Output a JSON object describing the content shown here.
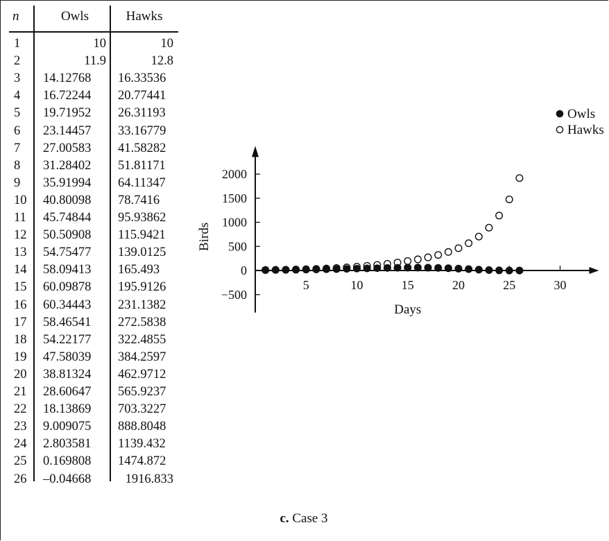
{
  "table": {
    "header_n": "n",
    "header_owls": "Owls",
    "header_hawks": "Hawks",
    "rows": [
      {
        "n": "1",
        "owls": "10",
        "hawks": "10"
      },
      {
        "n": "2",
        "owls": "11.9",
        "hawks": "12.8"
      },
      {
        "n": "3",
        "owls": "14.12768",
        "hawks": "16.33536"
      },
      {
        "n": "4",
        "owls": "16.72244",
        "hawks": "20.77441"
      },
      {
        "n": "5",
        "owls": "19.71952",
        "hawks": "26.31193"
      },
      {
        "n": "6",
        "owls": "23.14457",
        "hawks": "33.16779"
      },
      {
        "n": "7",
        "owls": "27.00583",
        "hawks": "41.58282"
      },
      {
        "n": "8",
        "owls": "31.28402",
        "hawks": "51.81171"
      },
      {
        "n": "9",
        "owls": "35.91994",
        "hawks": "64.11347"
      },
      {
        "n": "10",
        "owls": "40.80098",
        "hawks": "78.7416"
      },
      {
        "n": "11",
        "owls": "45.74844",
        "hawks": "95.93862"
      },
      {
        "n": "12",
        "owls": "50.50908",
        "hawks": "115.9421"
      },
      {
        "n": "13",
        "owls": "54.75477",
        "hawks": "139.0125"
      },
      {
        "n": "14",
        "owls": "58.09413",
        "hawks": "165.493"
      },
      {
        "n": "15",
        "owls": "60.09878",
        "hawks": "195.9126"
      },
      {
        "n": "16",
        "owls": "60.34443",
        "hawks": "231.1382"
      },
      {
        "n": "17",
        "owls": "58.46541",
        "hawks": "272.5838"
      },
      {
        "n": "18",
        "owls": "54.22177",
        "hawks": "322.4855"
      },
      {
        "n": "19",
        "owls": "47.58039",
        "hawks": "384.2597"
      },
      {
        "n": "20",
        "owls": "38.81324",
        "hawks": "462.9712"
      },
      {
        "n": "21",
        "owls": "28.60647",
        "hawks": "565.9237"
      },
      {
        "n": "22",
        "owls": "18.13869",
        "hawks": "703.3227"
      },
      {
        "n": "23",
        "owls": "9.009075",
        "hawks": "888.8048"
      },
      {
        "n": "24",
        "owls": "2.803581",
        "hawks": "1139.432"
      },
      {
        "n": "25",
        "owls": "0.169808",
        "hawks": "1474.872"
      },
      {
        "n": "26",
        "owls": "–0.04668",
        "hawks": "1916.833"
      }
    ]
  },
  "chart_data": {
    "type": "scatter",
    "xlabel": "Days",
    "ylabel": "Birds",
    "xlim": [
      0,
      33
    ],
    "ylim": [
      -700,
      2700
    ],
    "x_ticks": [
      5,
      10,
      15,
      20,
      25,
      30
    ],
    "y_ticks": [
      -500,
      0,
      500,
      1000,
      1500,
      2000
    ],
    "y_tick_labels": [
      "−500",
      "0",
      "500",
      "1000",
      "1500",
      "2000"
    ],
    "grid": false,
    "legend_position": "top-right",
    "x": [
      1,
      2,
      3,
      4,
      5,
      6,
      7,
      8,
      9,
      10,
      11,
      12,
      13,
      14,
      15,
      16,
      17,
      18,
      19,
      20,
      21,
      22,
      23,
      24,
      25,
      26
    ],
    "series": [
      {
        "name": "Owls",
        "marker": "filled-circle",
        "values": [
          10,
          11.9,
          14.12768,
          16.72244,
          19.71952,
          23.14457,
          27.00583,
          31.28402,
          35.91994,
          40.80098,
          45.74844,
          50.50908,
          54.75477,
          58.09413,
          60.09878,
          60.34443,
          58.46541,
          54.22177,
          47.58039,
          38.81324,
          28.60647,
          18.13869,
          9.009075,
          2.803581,
          0.169808,
          -0.04668
        ]
      },
      {
        "name": "Hawks",
        "marker": "open-circle",
        "values": [
          10,
          12.8,
          16.33536,
          20.77441,
          26.31193,
          33.16779,
          41.58282,
          51.81171,
          64.11347,
          78.7416,
          95.93862,
          115.9421,
          139.0125,
          165.493,
          195.9126,
          231.1382,
          272.5838,
          322.4855,
          384.2597,
          462.9712,
          565.9237,
          703.3227,
          888.8048,
          1139.432,
          1474.872,
          1916.833
        ]
      }
    ],
    "colors": {
      "ink": "#111111",
      "background": "#ffffff"
    }
  },
  "caption": {
    "label": "c.",
    "text": "Case 3"
  }
}
